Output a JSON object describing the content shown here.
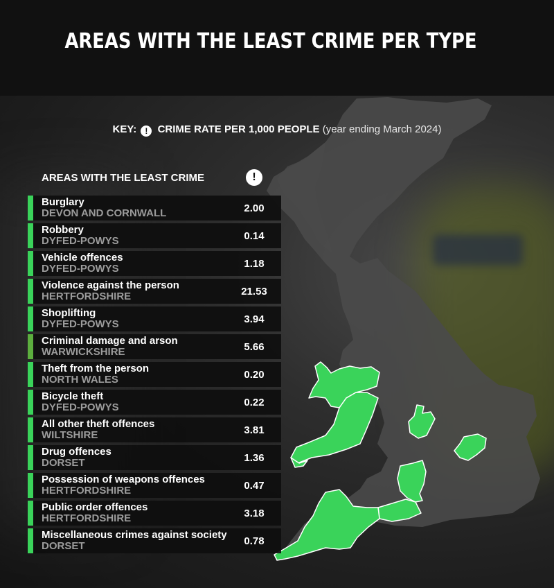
{
  "title": "AREAS WITH THE LEAST CRIME PER TYPE",
  "key": {
    "label": "KEY:",
    "icon": "alert-icon",
    "metric": "CRIME RATE PER 1,000 PEOPLE",
    "period": "(year ending March 2024)"
  },
  "table": {
    "header": "AREAS WITH THE LEAST CRIME",
    "header_icon": "!",
    "rows": [
      {
        "type": "Burglary",
        "area": "DEVON AND CORNWALL",
        "value": "2.00"
      },
      {
        "type": "Robbery",
        "area": "DYFED-POWYS",
        "value": "0.14"
      },
      {
        "type": "Vehicle offences",
        "area": "DYFED-POWYS",
        "value": "1.18"
      },
      {
        "type": "Violence against the person",
        "area": "HERTFORDSHIRE",
        "value": "21.53"
      },
      {
        "type": "Shoplifting",
        "area": "DYFED-POWYS",
        "value": "3.94"
      },
      {
        "type": "Criminal damage and arson",
        "area": "WARWICKSHIRE",
        "value": "5.66"
      },
      {
        "type": "Theft from the person",
        "area": "NORTH WALES",
        "value": "0.20"
      },
      {
        "type": "Bicycle theft",
        "area": "DYFED-POWYS",
        "value": "0.22"
      },
      {
        "type": "All other theft offences",
        "area": "WILTSHIRE",
        "value": "3.81"
      },
      {
        "type": "Drug offences",
        "area": "DORSET",
        "value": "1.36"
      },
      {
        "type": "Possession of weapons offences",
        "area": "HERTFORDSHIRE",
        "value": "0.47"
      },
      {
        "type": "Public order offences",
        "area": "HERTFORDSHIRE",
        "value": "3.18"
      },
      {
        "type": "Miscellaneous crimes against society",
        "area": "DORSET",
        "value": "0.78"
      }
    ]
  },
  "colors": {
    "highlight": "#3ad35a",
    "row_bar": "#3ad35a",
    "row_bar_alt": "#5cae3e",
    "land": "#4a4a4a",
    "header_bg": "#111111"
  }
}
